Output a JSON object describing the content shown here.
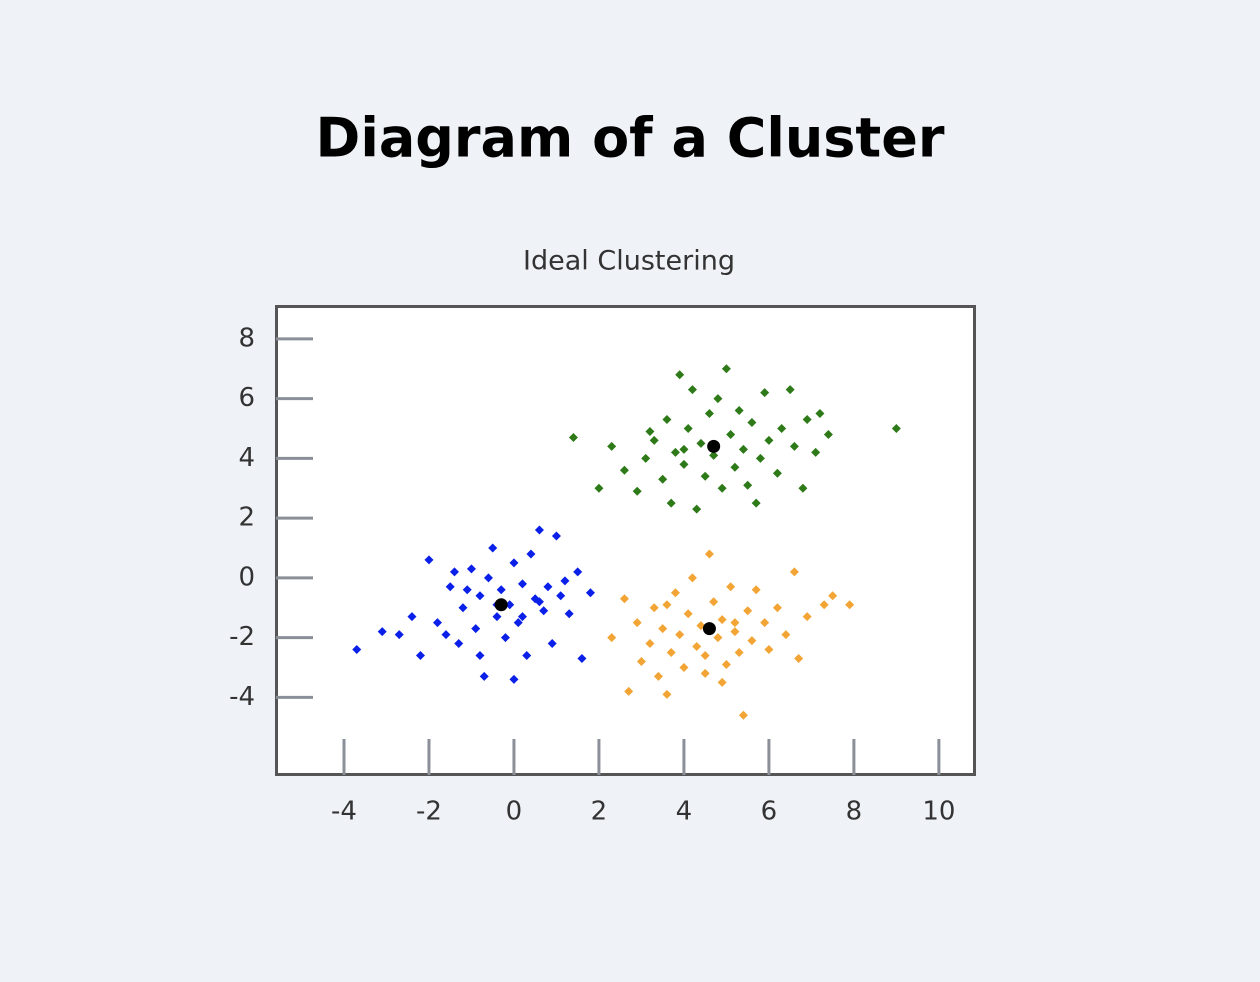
{
  "chart_data": {
    "type": "scatter",
    "title": "Diagram of a Cluster",
    "subtitle": "Ideal Clustering",
    "xlim": [
      -5.6,
      10.85
    ],
    "ylim": [
      -6.6,
      9.1
    ],
    "xticks": [
      -4,
      -2,
      0,
      2,
      4,
      6,
      8,
      10
    ],
    "yticks": [
      -4,
      -2,
      0,
      2,
      4,
      6,
      8
    ],
    "grid": false,
    "series": [
      {
        "color": "#0a1fe8",
        "marker": "diamond",
        "x": [
          -3.7,
          -3.1,
          -2.7,
          -2.2,
          -2.0,
          -1.8,
          -1.5,
          -1.3,
          -1.2,
          -1.0,
          -0.9,
          -0.8,
          -0.7,
          -0.6,
          -0.5,
          -0.4,
          -0.3,
          -0.2,
          -0.1,
          0.0,
          0.1,
          0.2,
          0.3,
          0.4,
          0.5,
          0.6,
          0.7,
          0.8,
          0.9,
          1.0,
          1.1,
          1.3,
          1.5,
          1.6,
          1.8,
          -1.6,
          -1.1,
          -0.4,
          0.2,
          -0.8,
          0.0,
          -2.4,
          -1.4,
          0.6,
          1.2
        ],
        "values": [
          -2.4,
          -1.8,
          -1.9,
          -2.6,
          0.6,
          -1.5,
          -0.3,
          -2.2,
          -1.0,
          0.3,
          -1.7,
          -0.6,
          -3.3,
          0.0,
          1.0,
          -1.3,
          -0.4,
          -2.0,
          -0.9,
          0.5,
          -1.5,
          -0.2,
          -2.6,
          0.8,
          -0.7,
          1.6,
          -1.1,
          -0.3,
          -2.2,
          1.4,
          -0.6,
          -1.2,
          0.2,
          -2.7,
          -0.5,
          -1.9,
          -0.4,
          -0.9,
          -1.3,
          -2.6,
          -3.4,
          -1.3,
          0.2,
          -0.8,
          -0.1
        ]
      },
      {
        "color": "#2e7a18",
        "marker": "diamond",
        "x": [
          1.4,
          2.0,
          2.3,
          2.6,
          2.9,
          3.1,
          3.3,
          3.5,
          3.6,
          3.7,
          3.8,
          3.9,
          4.0,
          4.1,
          4.2,
          4.3,
          4.4,
          4.5,
          4.6,
          4.7,
          4.8,
          4.9,
          5.0,
          5.1,
          5.2,
          5.3,
          5.4,
          5.5,
          5.6,
          5.8,
          5.9,
          6.0,
          6.2,
          6.3,
          6.5,
          6.6,
          6.8,
          6.9,
          7.1,
          7.2,
          7.4,
          9.0,
          3.2,
          4.0,
          5.7
        ],
        "values": [
          4.7,
          3.0,
          4.4,
          3.6,
          2.9,
          4.0,
          4.6,
          3.3,
          5.3,
          2.5,
          4.2,
          6.8,
          3.8,
          5.0,
          6.3,
          2.3,
          4.5,
          3.4,
          5.5,
          4.1,
          6.0,
          3.0,
          7.0,
          4.8,
          3.7,
          5.6,
          4.3,
          3.1,
          5.2,
          4.0,
          6.2,
          4.6,
          3.5,
          5.0,
          6.3,
          4.4,
          3.0,
          5.3,
          4.2,
          5.5,
          4.8,
          5.0,
          4.9,
          4.3,
          2.5
        ]
      },
      {
        "color": "#f2a535",
        "marker": "diamond",
        "x": [
          2.3,
          2.6,
          2.7,
          2.9,
          3.0,
          3.2,
          3.3,
          3.4,
          3.5,
          3.6,
          3.7,
          3.8,
          3.9,
          4.0,
          4.1,
          4.2,
          4.3,
          4.4,
          4.5,
          4.6,
          4.7,
          4.8,
          4.9,
          5.0,
          5.1,
          5.2,
          5.3,
          5.4,
          5.5,
          5.6,
          5.7,
          5.9,
          6.0,
          6.2,
          6.4,
          6.6,
          6.7,
          6.9,
          7.3,
          7.5,
          7.9,
          4.5,
          3.6,
          5.2,
          4.9
        ],
        "values": [
          -2.0,
          -0.7,
          -3.8,
          -1.5,
          -2.8,
          -2.2,
          -1.0,
          -3.3,
          -1.7,
          -3.9,
          -2.5,
          -0.5,
          -1.9,
          -3.0,
          -1.2,
          0.0,
          -2.3,
          -1.6,
          -3.2,
          0.8,
          -0.8,
          -2.0,
          -1.4,
          -2.9,
          -0.3,
          -1.8,
          -2.5,
          -4.6,
          -1.1,
          -2.1,
          -0.4,
          -1.5,
          -2.4,
          -1.0,
          -1.9,
          0.2,
          -2.7,
          -1.3,
          -0.9,
          -0.6,
          -0.9,
          -2.6,
          -0.9,
          -1.5,
          -3.5
        ]
      },
      {
        "color": "#000000",
        "marker": "circle",
        "x": [
          -0.3,
          4.7,
          4.6
        ],
        "values": [
          -0.9,
          4.4,
          -1.7
        ]
      }
    ]
  }
}
